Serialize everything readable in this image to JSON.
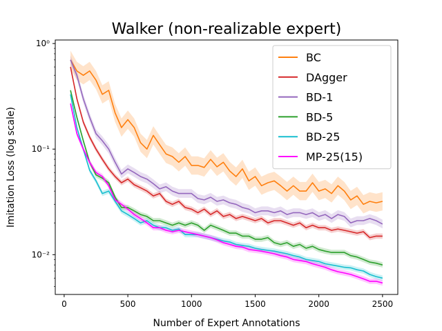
{
  "chart_data": {
    "type": "line",
    "title": "Walker (non-realizable expert)",
    "xlabel": "Number of Expert Annotations",
    "ylabel": "Imitation Loss (log scale)",
    "yscale": "log",
    "xlim": [
      -70,
      2620
    ],
    "ylim": [
      0.0042,
      1.08
    ],
    "x_ticks": [
      0,
      500,
      1000,
      1500,
      2000,
      2500
    ],
    "y_ticks": [
      {
        "value": 0.01,
        "label": "10⁻²"
      },
      {
        "value": 0.1,
        "label": "10⁻¹"
      },
      {
        "value": 1.0,
        "label": "10⁰"
      }
    ],
    "legend_position": "top-right",
    "x": [
      50,
      100,
      150,
      200,
      250,
      300,
      350,
      400,
      450,
      500,
      550,
      600,
      650,
      700,
      750,
      800,
      850,
      900,
      950,
      1000,
      1050,
      1100,
      1150,
      1200,
      1250,
      1300,
      1350,
      1400,
      1450,
      1500,
      1550,
      1600,
      1650,
      1700,
      1750,
      1800,
      1850,
      1900,
      1950,
      2000,
      2050,
      2100,
      2150,
      2200,
      2250,
      2300,
      2350,
      2400,
      2450,
      2500
    ],
    "series": [
      {
        "name": "BC",
        "color": "#ff7f0e",
        "band": 0.22,
        "values": [
          0.7,
          0.55,
          0.5,
          0.55,
          0.45,
          0.33,
          0.36,
          0.22,
          0.16,
          0.19,
          0.16,
          0.115,
          0.1,
          0.135,
          0.11,
          0.09,
          0.085,
          0.075,
          0.085,
          0.07,
          0.07,
          0.067,
          0.08,
          0.068,
          0.075,
          0.062,
          0.055,
          0.065,
          0.05,
          0.055,
          0.045,
          0.048,
          0.05,
          0.045,
          0.04,
          0.045,
          0.04,
          0.04,
          0.048,
          0.04,
          0.042,
          0.038,
          0.045,
          0.04,
          0.033,
          0.036,
          0.03,
          0.032,
          0.031,
          0.032
        ]
      },
      {
        "name": "DAgger",
        "color": "#d62728",
        "band": 0.06,
        "values": [
          0.6,
          0.3,
          0.18,
          0.13,
          0.1,
          0.08,
          0.065,
          0.055,
          0.048,
          0.052,
          0.046,
          0.043,
          0.04,
          0.036,
          0.038,
          0.032,
          0.03,
          0.032,
          0.028,
          0.027,
          0.025,
          0.027,
          0.024,
          0.026,
          0.023,
          0.024,
          0.022,
          0.023,
          0.022,
          0.021,
          0.022,
          0.02,
          0.021,
          0.021,
          0.02,
          0.019,
          0.02,
          0.018,
          0.019,
          0.018,
          0.018,
          0.017,
          0.0175,
          0.017,
          0.0165,
          0.016,
          0.0165,
          0.0145,
          0.015,
          0.015
        ]
      },
      {
        "name": "BD-1",
        "color": "#9467bd",
        "band": 0.1,
        "values": [
          0.7,
          0.5,
          0.3,
          0.2,
          0.14,
          0.12,
          0.1,
          0.075,
          0.058,
          0.065,
          0.06,
          0.055,
          0.052,
          0.047,
          0.042,
          0.044,
          0.04,
          0.038,
          0.038,
          0.038,
          0.034,
          0.033,
          0.035,
          0.032,
          0.033,
          0.031,
          0.03,
          0.028,
          0.027,
          0.025,
          0.026,
          0.026,
          0.025,
          0.026,
          0.024,
          0.025,
          0.025,
          0.024,
          0.025,
          0.023,
          0.024,
          0.022,
          0.024,
          0.023,
          0.02,
          0.021,
          0.021,
          0.022,
          0.021,
          0.0195
        ]
      },
      {
        "name": "BD-5",
        "color": "#2ca02c",
        "band": 0.06,
        "values": [
          0.36,
          0.2,
          0.12,
          0.075,
          0.057,
          0.053,
          0.048,
          0.035,
          0.028,
          0.028,
          0.026,
          0.024,
          0.023,
          0.021,
          0.021,
          0.02,
          0.019,
          0.02,
          0.019,
          0.02,
          0.019,
          0.017,
          0.019,
          0.018,
          0.017,
          0.016,
          0.016,
          0.015,
          0.015,
          0.014,
          0.014,
          0.0145,
          0.013,
          0.0125,
          0.013,
          0.012,
          0.0125,
          0.0115,
          0.012,
          0.0112,
          0.0108,
          0.0105,
          0.0105,
          0.0105,
          0.0098,
          0.0095,
          0.009,
          0.0085,
          0.0083,
          0.008
        ]
      },
      {
        "name": "BD-25",
        "color": "#17becf",
        "band": 0.06,
        "values": [
          0.33,
          0.16,
          0.1,
          0.063,
          0.05,
          0.038,
          0.04,
          0.032,
          0.026,
          0.024,
          0.022,
          0.02,
          0.021,
          0.019,
          0.018,
          0.018,
          0.017,
          0.0175,
          0.0155,
          0.0155,
          0.0155,
          0.015,
          0.0145,
          0.014,
          0.0135,
          0.0132,
          0.0125,
          0.0122,
          0.012,
          0.0115,
          0.0112,
          0.011,
          0.0108,
          0.0105,
          0.0102,
          0.0098,
          0.0095,
          0.009,
          0.0088,
          0.0086,
          0.0082,
          0.008,
          0.0078,
          0.0076,
          0.0075,
          0.0072,
          0.007,
          0.0065,
          0.0062,
          0.006
        ]
      },
      {
        "name": "MP-25(15)",
        "color": "#ff00ff",
        "band": 0.06,
        "values": [
          0.27,
          0.14,
          0.1,
          0.075,
          0.06,
          0.055,
          0.045,
          0.033,
          0.03,
          0.027,
          0.024,
          0.022,
          0.02,
          0.018,
          0.018,
          0.017,
          0.0165,
          0.017,
          0.0165,
          0.016,
          0.0155,
          0.015,
          0.0145,
          0.0138,
          0.013,
          0.0125,
          0.012,
          0.0118,
          0.0112,
          0.011,
          0.0108,
          0.0105,
          0.0102,
          0.0098,
          0.0095,
          0.009,
          0.0088,
          0.0086,
          0.0082,
          0.0079,
          0.0076,
          0.0072,
          0.0069,
          0.0067,
          0.0065,
          0.0062,
          0.0059,
          0.0056,
          0.0056,
          0.0054
        ]
      }
    ]
  }
}
